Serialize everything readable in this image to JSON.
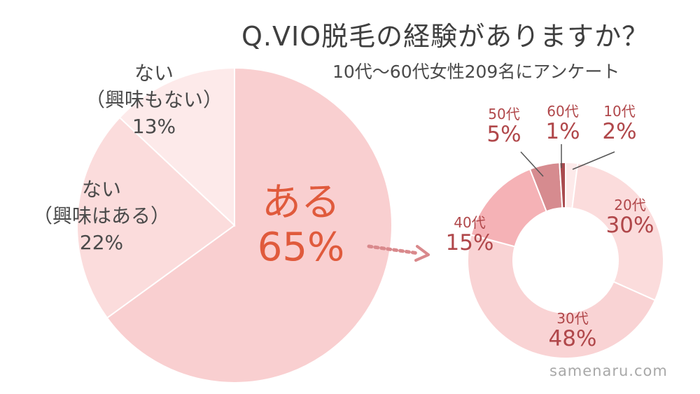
{
  "header": {
    "title": "Q.VIO脱毛の経験がありますか？",
    "subtitle": "10代〜60代女性209名にアンケート"
  },
  "watermark": "samenaru.com",
  "chart_data": [
    {
      "type": "pie",
      "slices": [
        {
          "key": "yes",
          "label": "ある",
          "value": 65,
          "display": "65%",
          "color": "#f9cfd0"
        },
        {
          "key": "no_interested",
          "label_lines": [
            "ない",
            "（興味はある）"
          ],
          "value": 22,
          "display": "22%",
          "color": "#fbdcdc"
        },
        {
          "key": "no_not_interested",
          "label_lines": [
            "ない",
            "（興味もない）"
          ],
          "value": 13,
          "display": "13%",
          "color": "#fdeaea"
        }
      ]
    },
    {
      "type": "pie",
      "subtype": "donut",
      "slices": [
        {
          "key": "10s",
          "label": "10代",
          "value": 2,
          "display": "2%",
          "color": "#fdeaea"
        },
        {
          "key": "20s",
          "label": "20代",
          "value": 30,
          "display": "30%",
          "color": "#fbdcdc"
        },
        {
          "key": "30s",
          "label": "30代",
          "value": 48,
          "display": "48%",
          "color": "#f9d3d4"
        },
        {
          "key": "40s",
          "label": "40代",
          "value": 15,
          "display": "15%",
          "color": "#f5b2b6"
        },
        {
          "key": "50s",
          "label": "50代",
          "value": 5,
          "display": "5%",
          "color": "#d68b8f"
        },
        {
          "key": "60s",
          "label": "60代",
          "value": 1,
          "display": "1%",
          "color": "#a94b4f"
        }
      ]
    }
  ]
}
